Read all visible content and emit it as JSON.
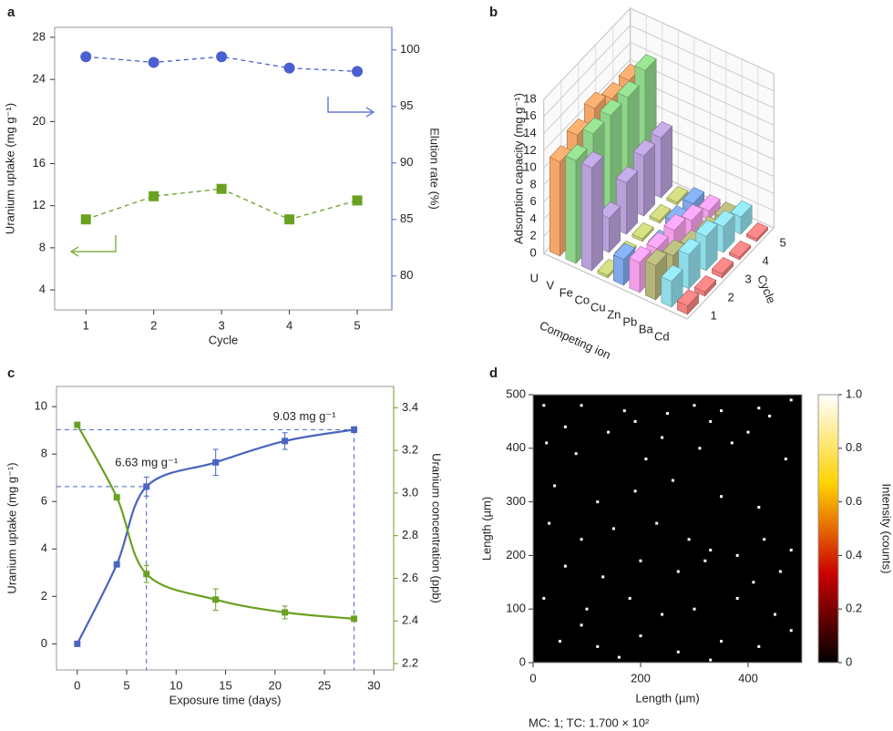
{
  "chart_data": [
    {
      "type": "line",
      "panel_label": "a",
      "x_label": "Cycle",
      "y_label": "Uranium uptake  (mg g⁻¹)",
      "y2_label": "Elution rate (%)",
      "x": [
        1,
        2,
        3,
        4,
        5
      ],
      "xlim": [
        0.54,
        5.51
      ],
      "xticks": [
        1,
        2,
        3,
        4,
        5
      ],
      "ylim": [
        2.1,
        28.95
      ],
      "yticks": [
        4,
        8,
        12,
        16,
        20,
        24,
        28
      ],
      "y2lim": [
        77,
        102
      ],
      "y2ticks": [
        80,
        85,
        90,
        95,
        100
      ],
      "series": [
        {
          "color": "#6aa121",
          "marker": "square",
          "line": "dashed",
          "values": [
            10.7,
            12.9,
            13.6,
            10.7,
            12.5
          ]
        },
        {
          "color": "#4a5fd0",
          "marker": "circle",
          "line": "dashed",
          "axis": "y2",
          "values": [
            99.4,
            98.9,
            99.4,
            98.4,
            98.1
          ]
        }
      ]
    },
    {
      "type": "bar3d",
      "panel_label": "b",
      "z_label": "Adsorption capacity (mg g⁻¹)",
      "x_label": "Competing ion",
      "y_label": "Cycle",
      "categories": [
        "U",
        "V",
        "Fe",
        "Co",
        "Cu",
        "Zn",
        "Pb",
        "Ba",
        "Cd"
      ],
      "colors": [
        "#f4a66a",
        "#8fd68a",
        "#b8a0d8",
        "#c8d07a",
        "#7fa8e8",
        "#f29ee8",
        "#b5b57a",
        "#8fdce8",
        "#f08080"
      ],
      "cycles": [
        1,
        2,
        3,
        4,
        5
      ],
      "zlim": [
        0,
        18
      ],
      "zticks": [
        0,
        2,
        4,
        6,
        8,
        10,
        12,
        14,
        16,
        18
      ],
      "values": [
        [
          11,
          12,
          13,
          12,
          12
        ],
        [
          12,
          13,
          13,
          13,
          14
        ],
        [
          12,
          4,
          6,
          7,
          7
        ],
        [
          0.3,
          0.3,
          0.3,
          0.3,
          0.3
        ],
        [
          3,
          0.3,
          0.3,
          1,
          1
        ],
        [
          3.5,
          3,
          3,
          2,
          1
        ],
        [
          4,
          3,
          2,
          1.5,
          1
        ],
        [
          3,
          4,
          4,
          3,
          2
        ],
        [
          1,
          0.5,
          0.5,
          0.3,
          0.3
        ]
      ]
    },
    {
      "type": "line",
      "panel_label": "c",
      "x_label": "Exposure time (days)",
      "y_label": "Uranium uptake  (mg g⁻¹)",
      "y2_label": "Uranium concentration (ppb)",
      "x": [
        0,
        4,
        7,
        14,
        21,
        28
      ],
      "xlim": [
        -2.1,
        32
      ],
      "xticks": [
        0,
        5,
        10,
        15,
        20,
        25,
        30
      ],
      "ylim": [
        -1.1,
        10.85
      ],
      "yticks": [
        0,
        2,
        4,
        6,
        8,
        10
      ],
      "y2lim": [
        2.17,
        3.5
      ],
      "y2ticks": [
        2.2,
        2.4,
        2.6,
        2.8,
        {
          "value": 3,
          "label": "3.0"
        },
        3.2,
        3.4
      ],
      "series": [
        {
          "color": "#4a64c0",
          "marker": "square",
          "line": "solid",
          "smooth": true,
          "values": [
            0,
            3.35,
            6.63,
            7.65,
            8.55,
            9.03
          ],
          "errors": [
            0,
            0.05,
            0.4,
            0.55,
            0.35,
            0.12
          ]
        },
        {
          "color": "#6aa121",
          "marker": "square",
          "line": "solid",
          "smooth": true,
          "axis": "y2",
          "values": [
            3.32,
            2.98,
            2.62,
            2.5,
            2.44,
            2.41
          ],
          "errors": [
            0,
            0,
            0.04,
            0.05,
            0.03,
            0.01
          ]
        }
      ],
      "ref_lines": [
        {
          "x": 7,
          "y": 6.63,
          "label": "6.63 mg g⁻¹"
        },
        {
          "x": 28,
          "y": 9.03,
          "label": "9.03 mg g⁻¹"
        }
      ]
    },
    {
      "type": "scatter",
      "panel_label": "d",
      "x_label": "Length (µm)",
      "y_label": "Length (µm)",
      "colorbar_label": "Intensity (counts)",
      "footer": "MC: 1; TC: 1.700 × 10²",
      "xlim": [
        0,
        500
      ],
      "xticks": [
        0,
        200,
        400
      ],
      "ylim": [
        0,
        500
      ],
      "yticks": [
        0,
        100,
        200,
        300,
        400,
        500
      ],
      "clim": [
        0,
        1
      ],
      "cticks": [
        0,
        0.2,
        0.4,
        0.6,
        0.8,
        {
          "value": 1,
          "label": "1.0"
        }
      ],
      "colormap": [
        "#000000",
        "#cc0000",
        "#ffd200",
        "#ffffff"
      ],
      "background": "#000000",
      "point_color": "#ffffff",
      "x": [
        20,
        90,
        170,
        250,
        300,
        350,
        420,
        480,
        60,
        140,
        190,
        240,
        330,
        400,
        440,
        25,
        80,
        210,
        310,
        370,
        470,
        40,
        120,
        190,
        260,
        350,
        420,
        30,
        90,
        150,
        230,
        290,
        330,
        380,
        430,
        480,
        60,
        130,
        200,
        270,
        320,
        410,
        460,
        20,
        100,
        180,
        240,
        300,
        380,
        450,
        50,
        120,
        200,
        270,
        350,
        420,
        480,
        160,
        330,
        90
      ],
      "y": [
        480,
        480,
        470,
        465,
        480,
        470,
        475,
        490,
        440,
        430,
        450,
        420,
        450,
        430,
        460,
        410,
        390,
        380,
        400,
        410,
        380,
        330,
        300,
        320,
        340,
        310,
        290,
        260,
        230,
        250,
        260,
        230,
        210,
        200,
        230,
        210,
        180,
        160,
        190,
        170,
        190,
        150,
        170,
        120,
        100,
        120,
        90,
        100,
        120,
        90,
        40,
        30,
        50,
        20,
        40,
        30,
        60,
        10,
        5,
        70
      ]
    }
  ]
}
